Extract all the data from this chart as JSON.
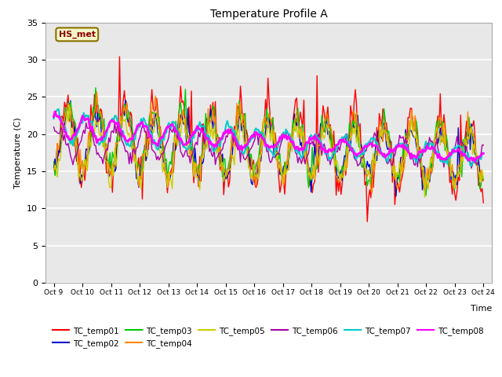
{
  "title": "Temperature Profile A",
  "xlabel": "Time",
  "ylabel": "Temperature (C)",
  "ylim": [
    0,
    35
  ],
  "yticks": [
    0,
    5,
    10,
    15,
    20,
    25,
    30,
    35
  ],
  "background_color": "#e8e8e8",
  "annotation_text": "HS_met",
  "annotation_color": "#8B0000",
  "annotation_bg": "#f5f5c8",
  "annotation_edge": "#8B7000",
  "series_colors": {
    "TC_temp01": "#ff0000",
    "TC_temp02": "#0000cc",
    "TC_temp03": "#00cc00",
    "TC_temp04": "#ff8800",
    "TC_temp05": "#cccc00",
    "TC_temp06": "#aa00aa",
    "TC_temp07": "#00cccc",
    "TC_temp08": "#ff00ff"
  },
  "xtick_labels": [
    "Oct 9",
    "Oct 10",
    "Oct 11",
    "Oct 12",
    "Oct 13",
    "Oct 14",
    "Oct 15",
    "Oct 16",
    "Oct 17",
    "Oct 18",
    "Oct 19",
    "Oct 20",
    "Oct 21",
    "Oct 22",
    "Oct 23",
    "Oct 24"
  ],
  "n_days": 15,
  "pts_per_day": 24
}
